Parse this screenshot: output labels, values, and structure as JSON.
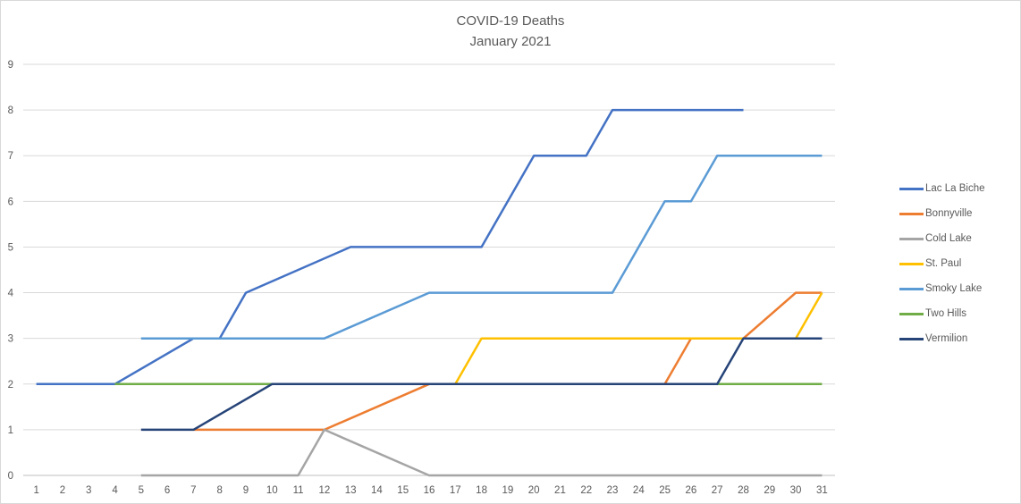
{
  "title": {
    "line1": "COVID-19 Deaths",
    "line2": "January 2021"
  },
  "chart_data": {
    "type": "line",
    "title": "COVID-19 Deaths",
    "subtitle": "January 2021",
    "xlabel": "",
    "ylabel": "",
    "x_range": [
      1,
      31
    ],
    "ylim": [
      0,
      9
    ],
    "xticks": [
      1,
      2,
      3,
      4,
      5,
      6,
      7,
      8,
      9,
      10,
      11,
      12,
      13,
      14,
      15,
      16,
      17,
      18,
      19,
      20,
      21,
      22,
      23,
      24,
      25,
      26,
      27,
      28,
      29,
      30,
      31
    ],
    "yticks": [
      0,
      1,
      2,
      3,
      4,
      5,
      6,
      7,
      8,
      9
    ],
    "grid": "horizontal",
    "legend_position": "right",
    "series": [
      {
        "name": "Lac La Biche",
        "color": "#4472C4",
        "points": [
          [
            1,
            2
          ],
          [
            4,
            2
          ],
          [
            7,
            3
          ],
          [
            8,
            3
          ],
          [
            9,
            4
          ],
          [
            13,
            5
          ],
          [
            18,
            5
          ],
          [
            20,
            7
          ],
          [
            22,
            7
          ],
          [
            23,
            8
          ],
          [
            28,
            8
          ]
        ]
      },
      {
        "name": "Bonnyville",
        "color": "#ED7D31",
        "points": [
          [
            7,
            1
          ],
          [
            12,
            1
          ],
          [
            16,
            2
          ],
          [
            25,
            2
          ],
          [
            26,
            3
          ],
          [
            28,
            3
          ],
          [
            30,
            4
          ],
          [
            31,
            4
          ]
        ]
      },
      {
        "name": "Cold Lake",
        "color": "#A5A5A5",
        "points": [
          [
            5,
            0
          ],
          [
            11,
            0
          ],
          [
            12,
            1
          ],
          [
            16,
            0
          ],
          [
            31,
            0
          ]
        ]
      },
      {
        "name": "St. Paul",
        "color": "#FFC000",
        "points": [
          [
            17,
            2
          ],
          [
            18,
            3
          ],
          [
            30,
            3
          ],
          [
            31,
            4
          ]
        ]
      },
      {
        "name": "Smoky Lake",
        "color": "#5B9BD5",
        "points": [
          [
            5,
            3
          ],
          [
            12,
            3
          ],
          [
            16,
            4
          ],
          [
            23,
            4
          ],
          [
            25,
            6
          ],
          [
            26,
            6
          ],
          [
            27,
            7
          ],
          [
            31,
            7
          ]
        ]
      },
      {
        "name": "Two Hills",
        "color": "#70AD47",
        "points": [
          [
            4,
            2
          ],
          [
            31,
            2
          ]
        ]
      },
      {
        "name": "Vermilion",
        "color": "#264478",
        "points": [
          [
            5,
            1
          ],
          [
            7,
            1
          ],
          [
            10,
            2
          ],
          [
            27,
            2
          ],
          [
            28,
            3
          ],
          [
            31,
            3
          ]
        ]
      }
    ]
  },
  "style": {
    "gridline_color": "#D9D9D9",
    "axis_line_color": "#BFBFBF",
    "tick_label_color": "#595959",
    "title_color": "#595959",
    "background": "#FFFFFF",
    "line_width": 2.5
  }
}
